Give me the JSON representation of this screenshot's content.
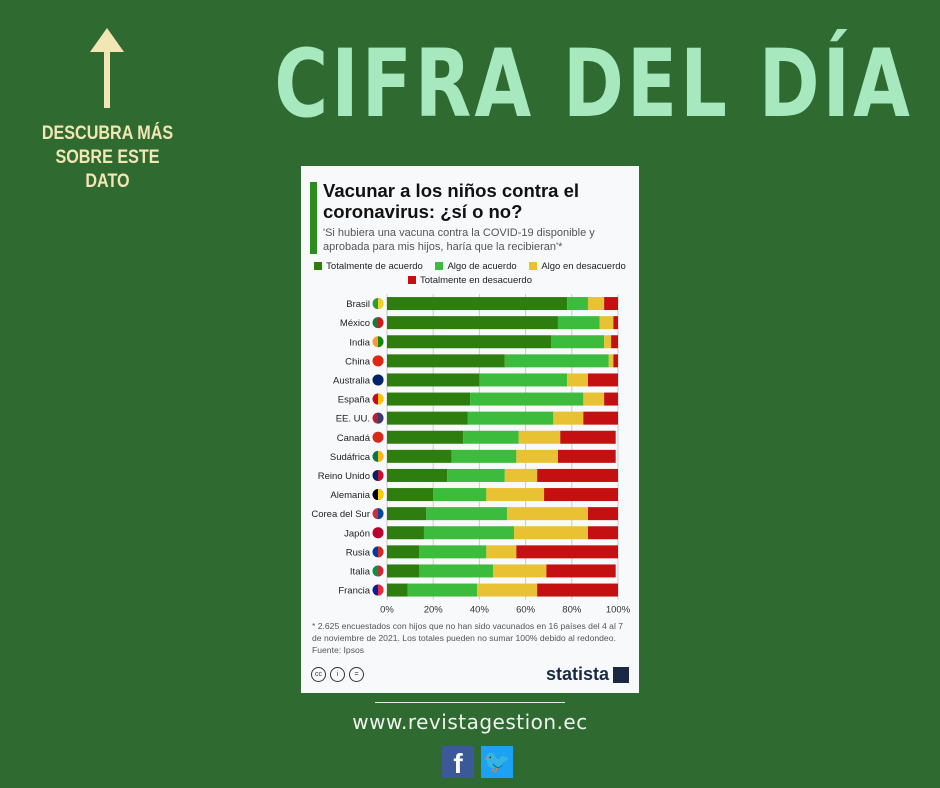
{
  "header": {
    "cta": "DESCUBRA MÁS SOBRE ESTE DATO",
    "title": "CIFRA DEL DÍA"
  },
  "card": {
    "title": "Vacunar a los niños contra el coronavirus: ¿sí o no?",
    "subtitle": "'Si hubiera una vacuna contra la COVID-19 disponible y aprobada para mis hijos, haría que la recibieran'*",
    "footnote": "* 2.625 encuestados con hijos que no han sido vacunados en 16 países del 4 al 7 de noviembre de 2021. Los totales pueden no sumar 100% debido al redondeo.",
    "source": "Fuente: Ipsos",
    "brand": "statista"
  },
  "footer": {
    "url": "www.revistagestion.ec",
    "facebook": "f",
    "twitter": "🐦"
  },
  "colors": {
    "background": "#2f6b30",
    "title": "#a7e8bf"
  },
  "chart_data": {
    "type": "bar",
    "orientation": "horizontal-stacked",
    "title": "Vacunar a los niños contra el coronavirus: ¿sí o no?",
    "categories": [
      "Brasil",
      "México",
      "India",
      "China",
      "Australia",
      "España",
      "EE. UU.",
      "Canadá",
      "Sudáfrica",
      "Reino Unido",
      "Alemania",
      "Corea del Sur",
      "Japón",
      "Rusia",
      "Italia",
      "Francia"
    ],
    "series": [
      {
        "name": "Totalmente de acuerdo",
        "color": "#2e7d0f",
        "values": [
          78,
          74,
          71,
          51,
          40,
          36,
          35,
          33,
          28,
          26,
          20,
          17,
          16,
          14,
          14,
          9
        ]
      },
      {
        "name": "Algo de acuerdo",
        "color": "#3dbb3d",
        "values": [
          9,
          18,
          23,
          45,
          38,
          49,
          37,
          24,
          28,
          25,
          23,
          35,
          39,
          29,
          32,
          30
        ]
      },
      {
        "name": "Algo en desacuerdo",
        "color": "#e8c232",
        "values": [
          7,
          6,
          3,
          2,
          9,
          9,
          13,
          18,
          18,
          14,
          25,
          35,
          32,
          13,
          23,
          26
        ]
      },
      {
        "name": "Totalmente en desacuerdo",
        "color": "#c41010",
        "values": [
          6,
          2,
          3,
          2,
          13,
          6,
          15,
          24,
          25,
          35,
          32,
          13,
          13,
          44,
          30,
          35
        ]
      }
    ],
    "xlim": [
      0,
      100
    ],
    "xticks": [
      "0%",
      "20%",
      "40%",
      "60%",
      "80%",
      "100%"
    ],
    "grid": true,
    "legend": "top",
    "flag_colors": [
      [
        "#2a9d3a",
        "#f4d21f"
      ],
      [
        "#1a7a3a",
        "#d21a1a"
      ],
      [
        "#ff9933",
        "#138808"
      ],
      [
        "#de2910",
        "#de2910"
      ],
      [
        "#012169",
        "#012169"
      ],
      [
        "#c60b1e",
        "#ffc400"
      ],
      [
        "#b22234",
        "#3c3b6e"
      ],
      [
        "#d52b1e",
        "#d52b1e"
      ],
      [
        "#007a4d",
        "#ffb612"
      ],
      [
        "#012169",
        "#c8102e"
      ],
      [
        "#000000",
        "#ffce00"
      ],
      [
        "#cd2e3a",
        "#0047a0"
      ],
      [
        "#bc002d",
        "#bc002d"
      ],
      [
        "#0039a6",
        "#d52b1e"
      ],
      [
        "#009246",
        "#ce2b37"
      ],
      [
        "#002395",
        "#ed2939"
      ]
    ]
  }
}
